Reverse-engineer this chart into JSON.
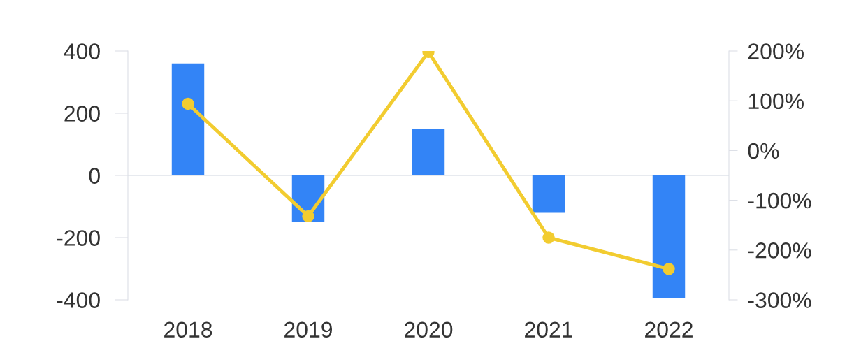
{
  "chart_data": {
    "type": "bar",
    "categories": [
      "2018",
      "2019",
      "2020",
      "2021",
      "2022"
    ],
    "series": [
      {
        "color": "#3384f6",
        "values": [
          360,
          -150,
          150,
          -120,
          -395
        ]
      },
      {
        "type": "line",
        "axis": "y2",
        "color": "#f2cc30",
        "marker": "circle",
        "line_style": "solid",
        "values": [
          94,
          -132,
          198,
          -175,
          -238
        ]
      }
    ],
    "ylim": [
      -400,
      400
    ],
    "yticks": [
      -400,
      -200,
      0,
      200,
      400
    ],
    "y2lim": [
      -300,
      200
    ],
    "y2ticks": [
      {
        "value": -300,
        "label": "-300%"
      },
      {
        "value": -200,
        "label": "-200%"
      },
      {
        "value": -100,
        "label": "-100%"
      },
      {
        "value": 0,
        "label": "0%"
      },
      {
        "value": 100,
        "label": "100%"
      },
      {
        "value": 200,
        "label": "200%"
      }
    ],
    "ref_lines": [
      {
        "axis": "y",
        "value": 0,
        "color": "#dfe3ea"
      }
    ]
  }
}
